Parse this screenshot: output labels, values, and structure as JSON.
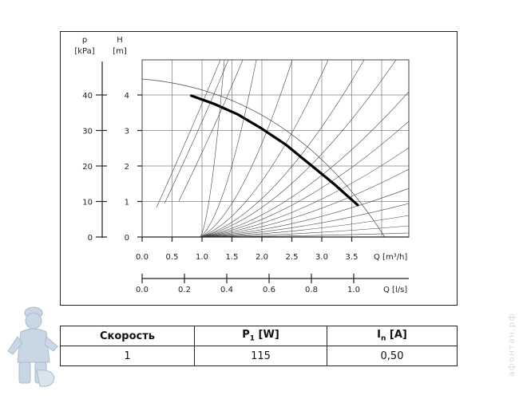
{
  "chart_data": {
    "type": "line",
    "title": "",
    "y_left": {
      "symbol": "p",
      "unit": "[kPa]",
      "ticks": [
        "40",
        "30",
        "20",
        "10",
        "0"
      ],
      "values": [
        40,
        30,
        20,
        10,
        0
      ]
    },
    "y_right": {
      "symbol": "H",
      "unit": "[m]",
      "ticks": [
        "4",
        "3",
        "2",
        "1",
        "0"
      ],
      "values": [
        4,
        3,
        2,
        1,
        0
      ],
      "ylim": [
        0,
        5
      ]
    },
    "x_top": {
      "label": "Q [m³/h]",
      "ticks": [
        "0.0",
        "0.5",
        "1.0",
        "1.5",
        "2.0",
        "2.5",
        "3.0",
        "3.5"
      ],
      "values": [
        0,
        0.5,
        1,
        1.5,
        2,
        2.5,
        3,
        3.5
      ],
      "xlim": [
        0,
        4.4
      ]
    },
    "x_bottom": {
      "label": "Q [l/s]",
      "ticks": [
        "0.0",
        "0.2",
        "0.4",
        "0.6",
        "0.8",
        "1.0"
      ],
      "values": [
        0,
        0.2,
        0.4,
        0.6,
        0.8,
        1.0
      ]
    },
    "grid": true,
    "series": [
      {
        "x": [
          0.82,
          1.2,
          1.6,
          2.0,
          2.4,
          2.8,
          3.2,
          3.5,
          3.6
        ],
        "y": [
          3.98,
          3.75,
          3.45,
          3.05,
          2.6,
          2.05,
          1.5,
          1.05,
          0.9
        ]
      }
    ],
    "colors": {
      "curve": "#000000",
      "grid": "#444444",
      "axis": "#222222"
    }
  },
  "table": {
    "headers": {
      "speed": "Скорость",
      "power": "P",
      "power_sub": "1",
      "power_unit": " [W]",
      "current": "I",
      "current_sub": "n",
      "current_unit": " [A]"
    },
    "rows": [
      {
        "speed": "1",
        "power": "115",
        "current": "0,50"
      }
    ]
  },
  "watermark": {
    "text": "афонтан.рф",
    "icon": "plumber-mascot-icon"
  }
}
